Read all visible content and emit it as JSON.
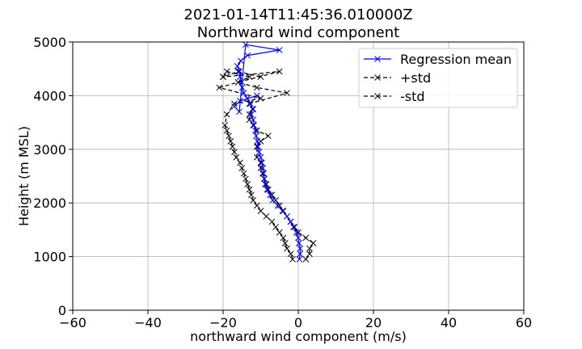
{
  "chart_data": {
    "type": "line",
    "title": "2021-01-14T11:45:36.010000Z",
    "subtitle": "Northward wind component",
    "xlabel": "northward wind component (m/s)",
    "ylabel": "Height (m MSL)",
    "xlim": [
      -60,
      60
    ],
    "ylim": [
      0,
      5000
    ],
    "xticks": [
      -60,
      -40,
      -20,
      0,
      20,
      40,
      60
    ],
    "yticks": [
      0,
      1000,
      2000,
      3000,
      4000,
      5000
    ],
    "xtick_labels": [
      "−60",
      "−40",
      "−20",
      "0",
      "20",
      "40",
      "60"
    ],
    "ytick_labels": [
      "0",
      "1000",
      "2000",
      "3000",
      "4000",
      "5000"
    ],
    "grid": true,
    "legend_position": "top-right",
    "series": [
      {
        "name": "Regression mean",
        "color": "#0000ff",
        "dash": "solid",
        "marker": "x",
        "x": [
          0.3,
          0.5,
          0.5,
          0.2,
          0.0,
          -0.5,
          -1.3,
          -2.1,
          -3.0,
          -4.2,
          -5.5,
          -6.8,
          -7.5,
          -8.3,
          -8.8,
          -9.1,
          -9.2,
          -9.4,
          -9.7,
          -10.0,
          -10.4,
          -10.7,
          -10.9,
          -11.2,
          -11.4,
          -11.8,
          -12.0,
          -12.5,
          -12.2,
          -12.7,
          -13.6,
          -14.5,
          -14.9,
          -15.0,
          -15.5,
          -15.7,
          -16.2,
          -15.3,
          -13.5,
          -5.0,
          -14.0,
          -15.7,
          -17.0,
          -15.5,
          -11.0
        ],
        "y": [
          950,
          1050,
          1150,
          1250,
          1350,
          1450,
          1550,
          1650,
          1750,
          1850,
          1950,
          2050,
          2150,
          2250,
          2350,
          2450,
          2550,
          2650,
          2750,
          2850,
          2950,
          3050,
          3150,
          3250,
          3350,
          3450,
          3550,
          3650,
          3750,
          3850,
          3950,
          4050,
          4150,
          4250,
          4350,
          4450,
          4550,
          4650,
          4750,
          4850,
          4950,
          3700,
          3800,
          3900,
          4000
        ]
      },
      {
        "name": "+std",
        "color": "#000000",
        "dash": "dashed",
        "marker": "x",
        "x": [
          2.0,
          3.0,
          3.0,
          4.0,
          2.0,
          0.0,
          -1.0,
          -2.0,
          -3.0,
          -4.0,
          -5.0,
          -6.0,
          -7.0,
          -8.0,
          -8.5,
          -9.0,
          -9.5,
          -10.0,
          -10.0,
          -11.0,
          -11.0,
          -10.0,
          -8.0,
          -11.0,
          -12.0,
          -13.0,
          -13.0,
          -12.0,
          -13.0,
          -3.0,
          -11.0,
          -16.0,
          -5.0,
          -20.0
        ],
        "y": [
          950,
          1050,
          1150,
          1250,
          1350,
          1450,
          1550,
          1650,
          1750,
          1850,
          1950,
          2050,
          2150,
          2250,
          2350,
          2450,
          2550,
          2650,
          2750,
          2850,
          3050,
          3150,
          3250,
          3350,
          3450,
          3550,
          3650,
          3750,
          3850,
          4050,
          4150,
          4250,
          4450,
          4350
        ]
      },
      {
        "name": "-std",
        "color": "#000000",
        "dash": "dashed",
        "marker": "x",
        "x": [
          -1.5,
          -2.0,
          -3.0,
          -3.5,
          -4.0,
          -5.0,
          -6.0,
          -7.0,
          -8.5,
          -10.0,
          -11.0,
          -12.0,
          -12.5,
          -13.0,
          -13.5,
          -14.0,
          -14.5,
          -15.0,
          -15.5,
          -16.5,
          -17.0,
          -17.5,
          -18.0,
          -18.5,
          -19.0,
          -19.5,
          -19.0,
          -17.0,
          -10.0,
          -21.0,
          -16.0,
          -13.0,
          -19.0,
          -20.0,
          -16.0,
          -10.0
        ],
        "y": [
          950,
          1050,
          1150,
          1250,
          1350,
          1450,
          1550,
          1650,
          1750,
          1850,
          1950,
          2050,
          2150,
          2250,
          2350,
          2450,
          2550,
          2650,
          2750,
          2850,
          2950,
          3050,
          3150,
          3250,
          3350,
          3450,
          3650,
          3850,
          3950,
          4150,
          4250,
          4350,
          4450,
          4350,
          4450,
          4350
        ]
      }
    ]
  }
}
